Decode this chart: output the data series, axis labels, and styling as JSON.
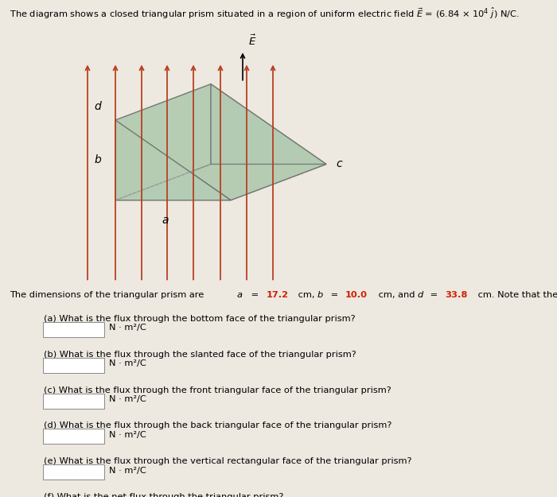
{
  "bg_color": "#ede8e0",
  "prism_color": "#aec9ae",
  "prism_edge_color": "#666666",
  "prism_alpha": 0.6,
  "arrow_color": "#b84020",
  "questions": [
    "(a) What is the flux through the bottom face of the triangular prism?",
    "(b) What is the flux through the slanted face of the triangular prism?",
    "(c) What is the flux through the front triangular face of the triangular prism?",
    "(d) What is the flux through the back triangular face of the triangular prism?",
    "(e) What is the flux through the vertical rectangular face of the triangular prism?",
    "(f) What is the net flux through the triangular prism?"
  ],
  "unit": "N · m²/C",
  "a_color": "#cc2200",
  "b_color": "#000000",
  "d_color": "#cc2200",
  "val_color": "#cc2200"
}
